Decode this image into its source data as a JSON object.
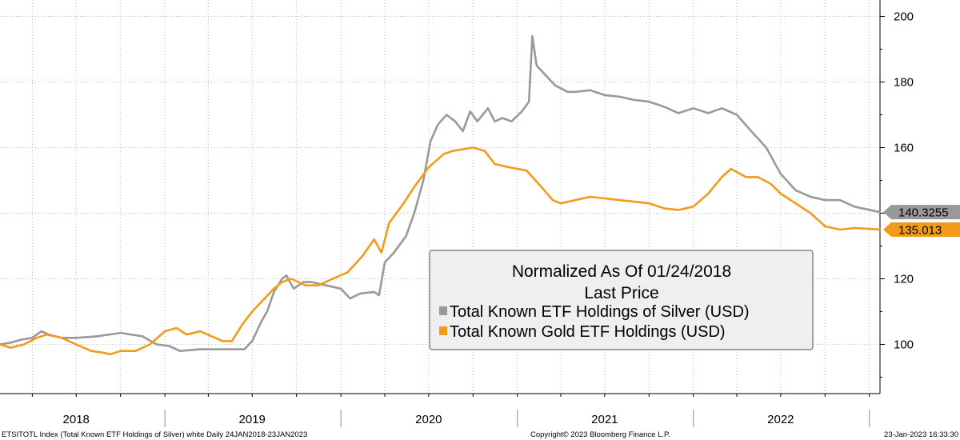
{
  "chart_data": {
    "type": "line",
    "title": "",
    "xlabel": "",
    "ylabel": "",
    "ylim": [
      85,
      205
    ],
    "yticks": [
      100,
      120,
      140,
      160,
      180,
      200
    ],
    "x_range": [
      "2018-01-24",
      "2023-01-23"
    ],
    "year_labels": [
      {
        "label": "2018",
        "x": "2018-07-01"
      },
      {
        "label": "2019",
        "x": "2019-07-01"
      },
      {
        "label": "2020",
        "x": "2020-07-01"
      },
      {
        "label": "2021",
        "x": "2021-07-01"
      },
      {
        "label": "2022",
        "x": "2022-07-01"
      }
    ],
    "quarter_ticks": [
      "2018-04-01",
      "2018-07-01",
      "2018-10-01",
      "2019-01-01",
      "2019-04-01",
      "2019-07-01",
      "2019-10-01",
      "2020-01-01",
      "2020-04-01",
      "2020-07-01",
      "2020-10-01",
      "2021-01-01",
      "2021-04-01",
      "2021-07-01",
      "2021-10-01",
      "2022-01-01",
      "2022-04-01",
      "2022-07-01",
      "2022-10-01",
      "2023-01-01"
    ],
    "year_separators": [
      "2019-01-01",
      "2020-01-01",
      "2021-01-01",
      "2022-01-01",
      "2023-01-01"
    ],
    "grid": true,
    "legend": {
      "placement": "center-right",
      "title_line1": "Normalized As Of 01/24/2018",
      "title_line2": "Last Price"
    },
    "series": [
      {
        "name": "Total Known ETF Holdings of Silver (USD)",
        "color": "#999999",
        "last_label": "140.3255",
        "points": [
          [
            "2018-01-24",
            100
          ],
          [
            "2018-02-15",
            100.5
          ],
          [
            "2018-03-10",
            101.5
          ],
          [
            "2018-04-01",
            102
          ],
          [
            "2018-04-20",
            104
          ],
          [
            "2018-05-05",
            103
          ],
          [
            "2018-06-01",
            102
          ],
          [
            "2018-07-01",
            102
          ],
          [
            "2018-08-15",
            102.5
          ],
          [
            "2018-10-01",
            103.5
          ],
          [
            "2018-11-15",
            102.5
          ],
          [
            "2018-12-15",
            100
          ],
          [
            "2019-01-10",
            99.5
          ],
          [
            "2019-02-01",
            98
          ],
          [
            "2019-03-15",
            98.5
          ],
          [
            "2019-05-01",
            98.5
          ],
          [
            "2019-06-15",
            98.5
          ],
          [
            "2019-07-01",
            101
          ],
          [
            "2019-07-20",
            107
          ],
          [
            "2019-08-01",
            110
          ],
          [
            "2019-08-15",
            116
          ],
          [
            "2019-09-01",
            120
          ],
          [
            "2019-09-10",
            121
          ],
          [
            "2019-09-25",
            117
          ],
          [
            "2019-10-15",
            119
          ],
          [
            "2019-11-01",
            119
          ],
          [
            "2019-12-01",
            118
          ],
          [
            "2020-01-01",
            117
          ],
          [
            "2020-01-20",
            114
          ],
          [
            "2020-02-10",
            115.5
          ],
          [
            "2020-03-10",
            116
          ],
          [
            "2020-03-20",
            115
          ],
          [
            "2020-04-01",
            125
          ],
          [
            "2020-04-20",
            128
          ],
          [
            "2020-05-15",
            133
          ],
          [
            "2020-06-01",
            140
          ],
          [
            "2020-06-20",
            150
          ],
          [
            "2020-07-05",
            162
          ],
          [
            "2020-07-20",
            167
          ],
          [
            "2020-08-07",
            170
          ],
          [
            "2020-08-25",
            168
          ],
          [
            "2020-09-10",
            165
          ],
          [
            "2020-09-25",
            171
          ],
          [
            "2020-10-10",
            168
          ],
          [
            "2020-11-01",
            172
          ],
          [
            "2020-11-15",
            168
          ],
          [
            "2020-12-01",
            169
          ],
          [
            "2020-12-20",
            168
          ],
          [
            "2021-01-10",
            171
          ],
          [
            "2021-01-25",
            174
          ],
          [
            "2021-02-01",
            194
          ],
          [
            "2021-02-10",
            185
          ],
          [
            "2021-03-01",
            182
          ],
          [
            "2021-03-20",
            179
          ],
          [
            "2021-04-15",
            177
          ],
          [
            "2021-05-01",
            177
          ],
          [
            "2021-06-01",
            177.5
          ],
          [
            "2021-07-01",
            176
          ],
          [
            "2021-08-01",
            175.5
          ],
          [
            "2021-09-01",
            174.5
          ],
          [
            "2021-10-01",
            174
          ],
          [
            "2021-11-01",
            172.5
          ],
          [
            "2021-12-01",
            170.5
          ],
          [
            "2022-01-01",
            172
          ],
          [
            "2022-02-01",
            170.5
          ],
          [
            "2022-03-01",
            172
          ],
          [
            "2022-04-01",
            170
          ],
          [
            "2022-05-01",
            165
          ],
          [
            "2022-06-01",
            160
          ],
          [
            "2022-07-01",
            152
          ],
          [
            "2022-08-01",
            147
          ],
          [
            "2022-09-01",
            145
          ],
          [
            "2022-10-01",
            144
          ],
          [
            "2022-11-01",
            144
          ],
          [
            "2022-12-01",
            142
          ],
          [
            "2023-01-23",
            140.3255
          ]
        ]
      },
      {
        "name": "Total Known Gold ETF Holdings (USD)",
        "color": "#f29a1b",
        "last_label": "135.013",
        "points": [
          [
            "2018-01-24",
            100
          ],
          [
            "2018-02-15",
            99
          ],
          [
            "2018-03-15",
            100
          ],
          [
            "2018-04-10",
            102
          ],
          [
            "2018-05-01",
            103
          ],
          [
            "2018-06-01",
            102
          ],
          [
            "2018-07-01",
            100
          ],
          [
            "2018-08-01",
            98
          ],
          [
            "2018-08-25",
            97.5
          ],
          [
            "2018-09-10",
            97
          ],
          [
            "2018-10-01",
            98
          ],
          [
            "2018-11-01",
            98
          ],
          [
            "2018-12-01",
            100
          ],
          [
            "2019-01-01",
            104
          ],
          [
            "2019-01-25",
            105
          ],
          [
            "2019-02-15",
            103
          ],
          [
            "2019-03-15",
            104
          ],
          [
            "2019-05-01",
            101
          ],
          [
            "2019-05-20",
            101
          ],
          [
            "2019-06-10",
            106
          ],
          [
            "2019-07-01",
            110
          ],
          [
            "2019-08-15",
            117
          ],
          [
            "2019-09-01",
            119
          ],
          [
            "2019-09-20",
            120
          ],
          [
            "2019-10-20",
            118
          ],
          [
            "2019-11-15",
            118
          ],
          [
            "2019-12-15",
            120
          ],
          [
            "2020-01-15",
            122
          ],
          [
            "2020-02-15",
            127
          ],
          [
            "2020-03-10",
            132
          ],
          [
            "2020-03-25",
            128
          ],
          [
            "2020-04-10",
            137
          ],
          [
            "2020-05-10",
            143
          ],
          [
            "2020-06-01",
            148
          ],
          [
            "2020-07-01",
            154
          ],
          [
            "2020-08-01",
            158
          ],
          [
            "2020-08-20",
            159
          ],
          [
            "2020-10-01",
            160
          ],
          [
            "2020-10-25",
            159
          ],
          [
            "2020-11-15",
            155
          ],
          [
            "2020-12-15",
            154
          ],
          [
            "2021-01-20",
            153
          ],
          [
            "2021-02-20",
            148
          ],
          [
            "2021-03-15",
            144
          ],
          [
            "2021-04-01",
            143
          ],
          [
            "2021-06-01",
            145
          ],
          [
            "2021-08-01",
            144
          ],
          [
            "2021-10-01",
            143
          ],
          [
            "2021-11-01",
            141.5
          ],
          [
            "2021-12-01",
            141
          ],
          [
            "2022-01-01",
            142
          ],
          [
            "2022-02-01",
            146
          ],
          [
            "2022-03-01",
            151
          ],
          [
            "2022-03-20",
            153.5
          ],
          [
            "2022-04-20",
            151
          ],
          [
            "2022-05-15",
            151
          ],
          [
            "2022-06-10",
            149
          ],
          [
            "2022-07-01",
            146
          ],
          [
            "2022-08-01",
            143
          ],
          [
            "2022-09-01",
            140
          ],
          [
            "2022-10-01",
            136
          ],
          [
            "2022-11-01",
            135
          ],
          [
            "2022-12-01",
            135.5
          ],
          [
            "2023-01-23",
            135.013
          ]
        ]
      }
    ]
  },
  "footer": {
    "left": "ETSITOTL Index (Total Known ETF Holdings of Silver) white  Daily 24JAN2018-23JAN2023",
    "center": "Copyright© 2023 Bloomberg Finance L.P.",
    "right": "23-Jan-2023 16:33:30"
  }
}
